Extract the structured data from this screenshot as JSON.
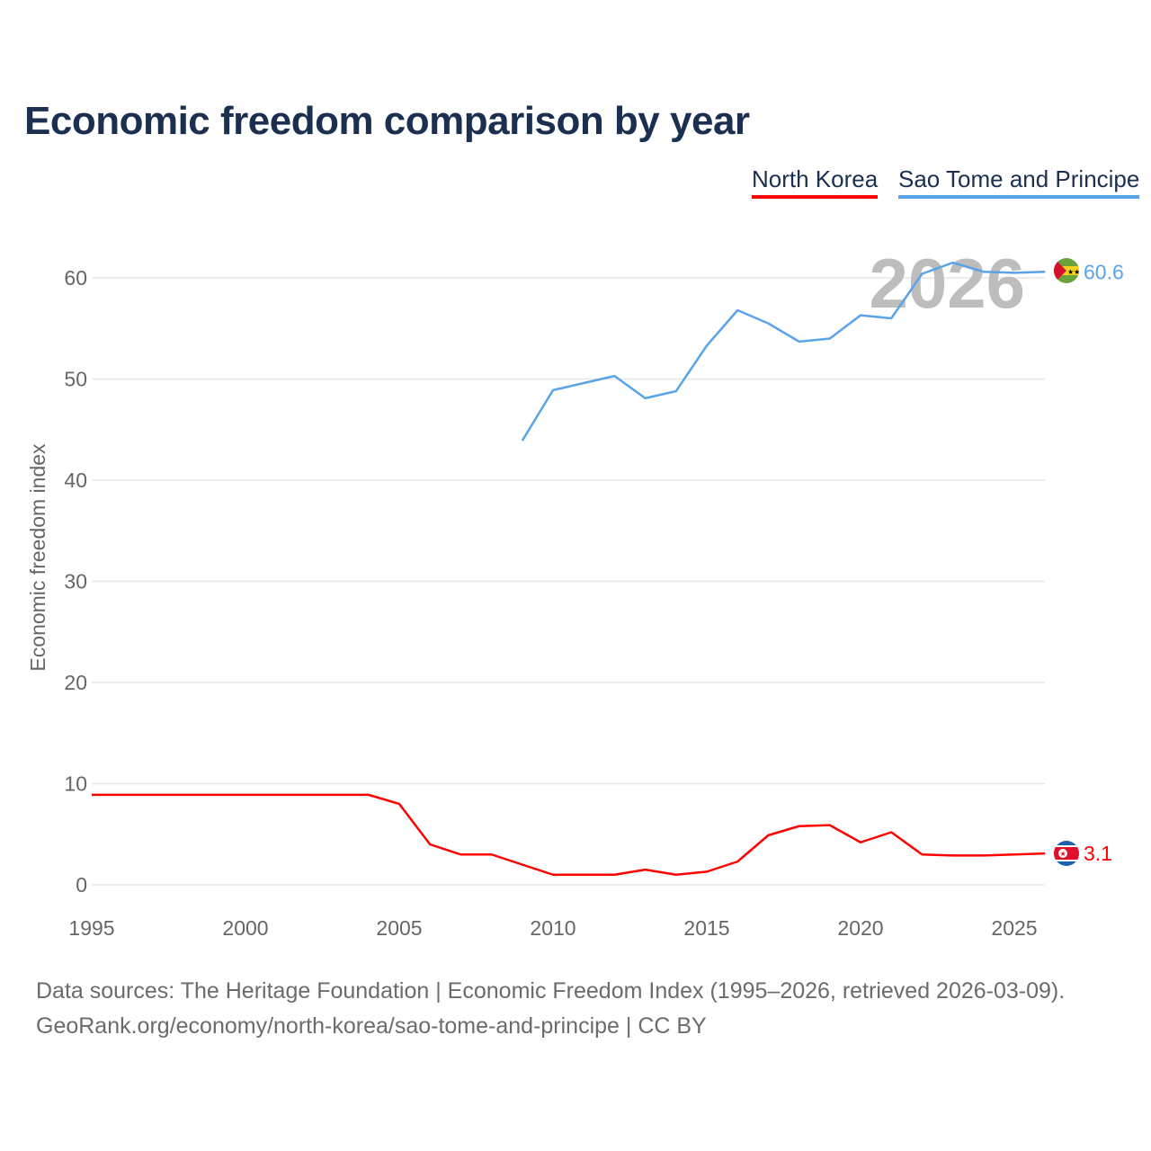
{
  "chart_data": {
    "type": "line",
    "title": "Economic freedom comparison by year",
    "xlabel": "",
    "ylabel": "Economic freedom index",
    "xlim": [
      1995,
      2026
    ],
    "ylim": [
      0,
      65
    ],
    "xticks": [
      1995,
      2000,
      2005,
      2010,
      2015,
      2020,
      2025
    ],
    "yticks": [
      0,
      10,
      20,
      30,
      40,
      50,
      60
    ],
    "grid": true,
    "legend_placement": "top-right",
    "year_watermark": "2026",
    "series": [
      {
        "name": "North Korea",
        "color": "#ff0000",
        "end_label": "3.1",
        "x": [
          1995,
          1996,
          1997,
          1998,
          1999,
          2000,
          2001,
          2002,
          2003,
          2004,
          2005,
          2006,
          2007,
          2008,
          2009,
          2010,
          2011,
          2012,
          2013,
          2014,
          2015,
          2016,
          2017,
          2018,
          2019,
          2020,
          2021,
          2022,
          2023,
          2024,
          2025,
          2026
        ],
        "y": [
          8.9,
          8.9,
          8.9,
          8.9,
          8.9,
          8.9,
          8.9,
          8.9,
          8.9,
          8.9,
          8.0,
          4.0,
          3.0,
          3.0,
          2.0,
          1.0,
          1.0,
          1.0,
          1.5,
          1.0,
          1.3,
          2.3,
          4.9,
          5.8,
          5.9,
          4.2,
          5.2,
          3.0,
          2.9,
          2.9,
          3.0,
          3.1
        ]
      },
      {
        "name": "Sao Tome and Principe",
        "color": "#5aa3e8",
        "end_label": "60.6",
        "x": [
          2009,
          2010,
          2011,
          2012,
          2013,
          2014,
          2015,
          2016,
          2017,
          2018,
          2019,
          2020,
          2021,
          2022,
          2023,
          2024,
          2025,
          2026
        ],
        "y": [
          43.9,
          48.9,
          49.6,
          50.3,
          48.1,
          48.8,
          53.3,
          56.8,
          55.5,
          53.7,
          54.0,
          56.3,
          56.0,
          60.4,
          61.5,
          60.6,
          60.5,
          60.6
        ]
      }
    ]
  },
  "footer": {
    "line1": "Data sources: The Heritage Foundation | Economic Freedom Index (1995–2026, retrieved 2026-03-09).",
    "line2": "GeoRank.org/economy/north-korea/sao-tome-and-principe | CC BY"
  }
}
